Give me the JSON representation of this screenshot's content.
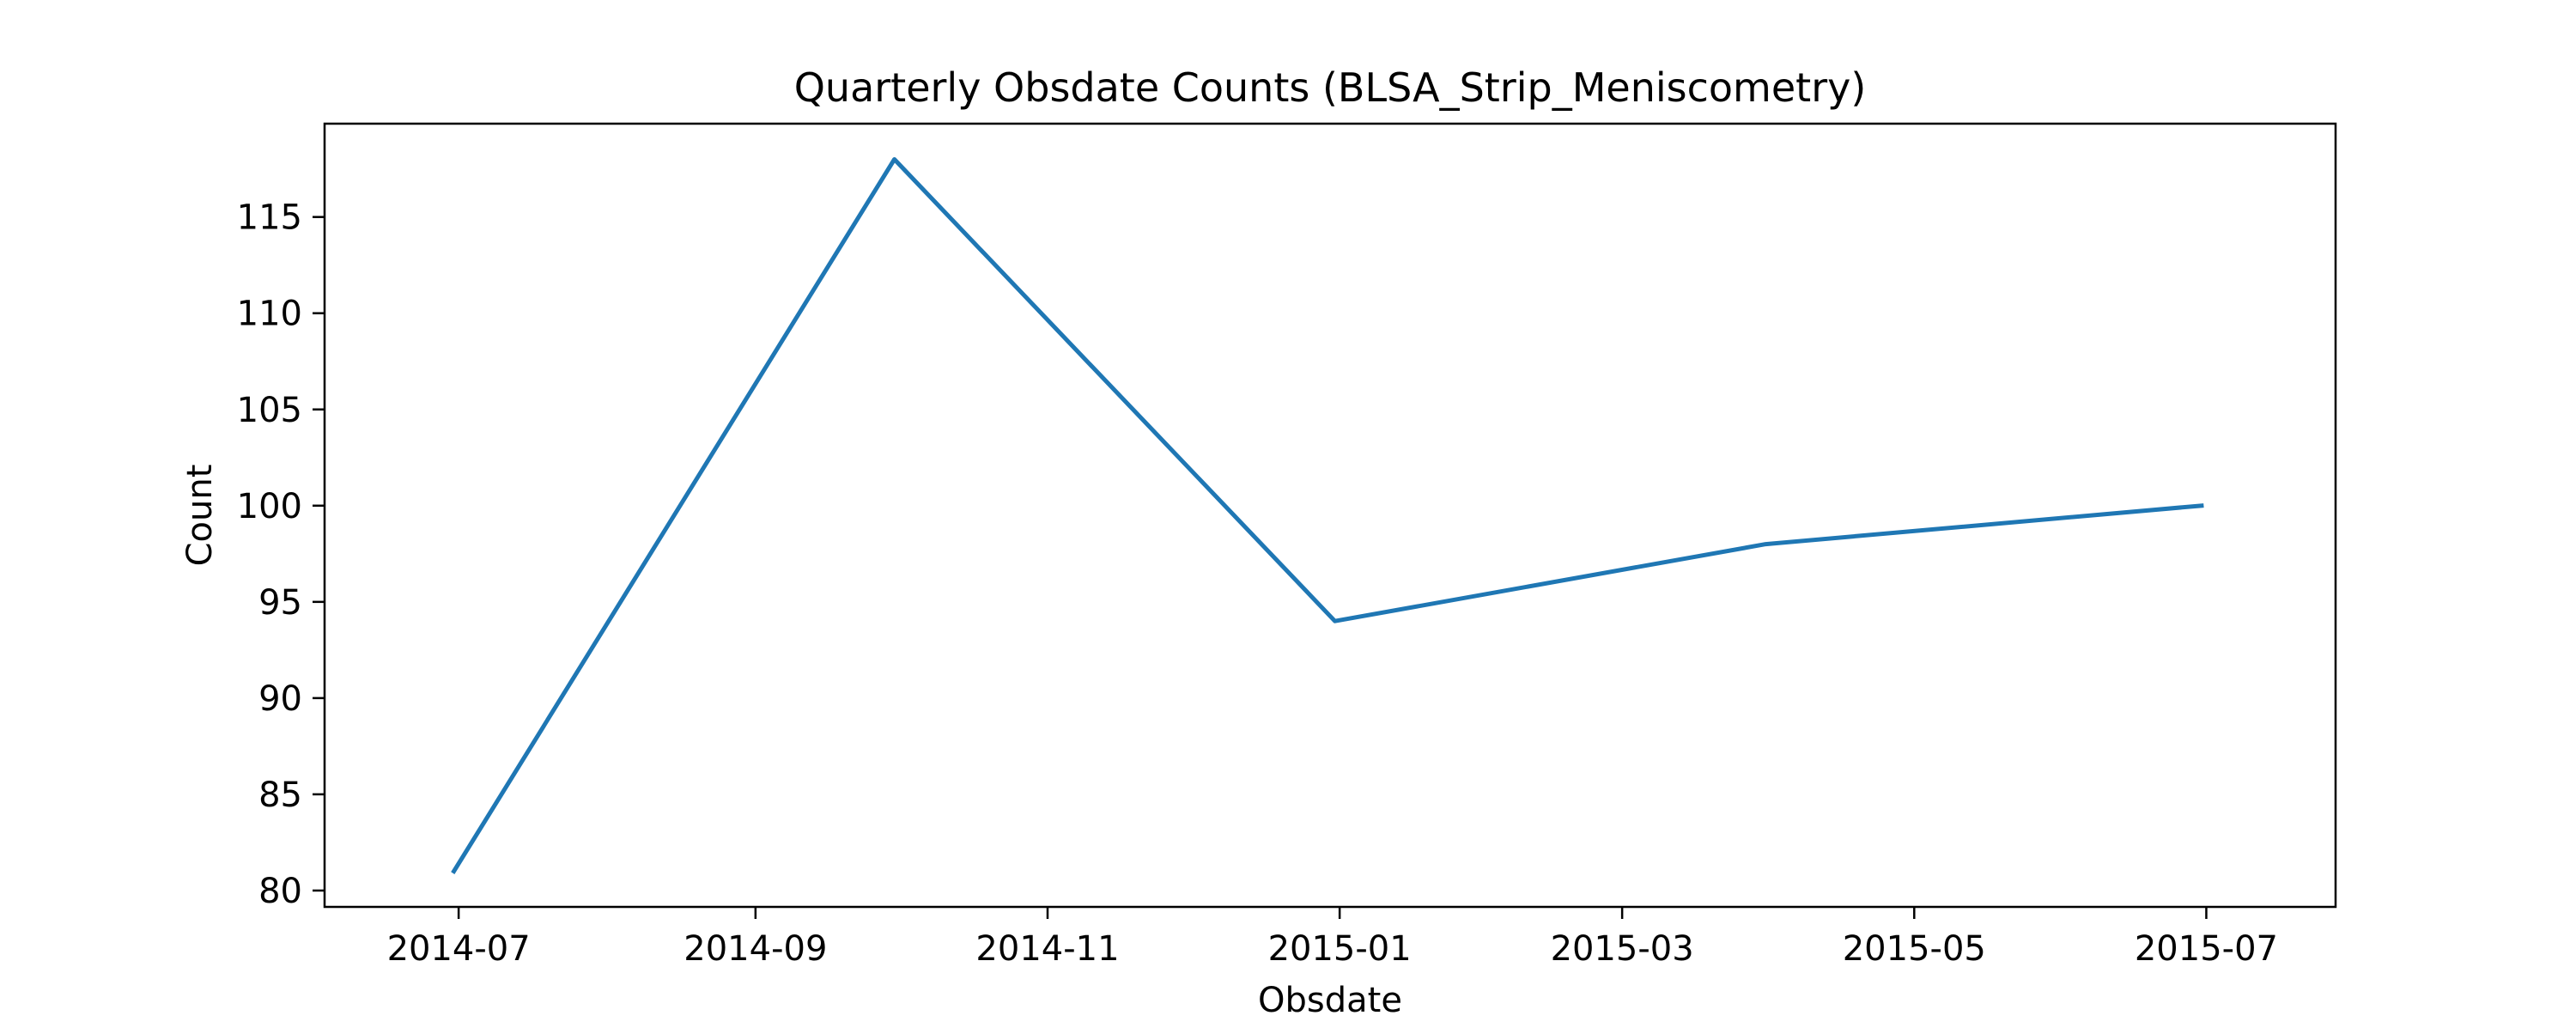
{
  "chart_data": {
    "type": "line",
    "title": "Quarterly Obsdate Counts (BLSA_Strip_Meniscometry)",
    "xlabel": "Obsdate",
    "ylabel": "Count",
    "x_axis_type": "date",
    "xlim": [
      "2014-06-03",
      "2015-07-28"
    ],
    "ylim": [
      79.15,
      119.85
    ],
    "x_ticks": [
      "2014-07",
      "2014-09",
      "2014-11",
      "2015-01",
      "2015-03",
      "2015-05",
      "2015-07"
    ],
    "y_ticks": [
      80,
      85,
      90,
      95,
      100,
      105,
      110,
      115
    ],
    "grid": false,
    "legend": false,
    "series": [
      {
        "color": "#1f77b4",
        "x": [
          "2014-06-30",
          "2014-09-30",
          "2014-12-31",
          "2015-03-31",
          "2015-06-30"
        ],
        "values": [
          81,
          118,
          94,
          98,
          100
        ]
      }
    ]
  }
}
